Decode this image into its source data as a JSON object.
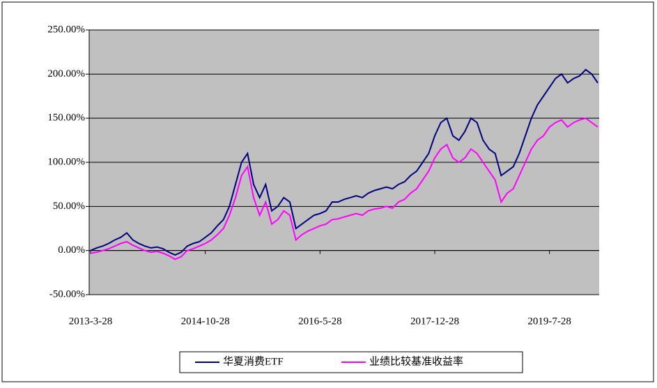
{
  "chart_data": {
    "type": "line",
    "categories": [
      "2013-3-28",
      null,
      null,
      null,
      null,
      null,
      null,
      null,
      null,
      null,
      null,
      null,
      null,
      null,
      null,
      null,
      null,
      null,
      null,
      "2014-10-28",
      null,
      null,
      null,
      null,
      null,
      null,
      null,
      null,
      null,
      null,
      null,
      null,
      null,
      null,
      null,
      null,
      null,
      null,
      "2016-5-28",
      null,
      null,
      null,
      null,
      null,
      null,
      null,
      null,
      null,
      null,
      null,
      null,
      null,
      null,
      null,
      null,
      null,
      null,
      "2017-12-28",
      null,
      null,
      null,
      null,
      null,
      null,
      null,
      null,
      null,
      null,
      null,
      null,
      null,
      null,
      null,
      null,
      null,
      null,
      "2019-7-28",
      null,
      null,
      null,
      null,
      null,
      null,
      null,
      null
    ],
    "series": [
      {
        "name": "华夏消费ETF",
        "color": "#000080",
        "values": [
          0,
          3,
          5,
          8,
          12,
          15,
          20,
          12,
          8,
          5,
          3,
          4,
          2,
          -2,
          -5,
          -2,
          5,
          8,
          10,
          15,
          20,
          28,
          35,
          50,
          75,
          100,
          110,
          75,
          60,
          75,
          45,
          50,
          60,
          55,
          25,
          30,
          35,
          40,
          42,
          45,
          55,
          55,
          58,
          60,
          62,
          60,
          65,
          68,
          70,
          72,
          70,
          75,
          78,
          85,
          90,
          100,
          110,
          130,
          145,
          150,
          130,
          125,
          135,
          150,
          145,
          125,
          115,
          110,
          85,
          90,
          95,
          110,
          130,
          150,
          165,
          175,
          185,
          195,
          200,
          190,
          195,
          198,
          205,
          200,
          190
        ]
      },
      {
        "name": "业绩比较基准收益率",
        "color": "#ff00ff",
        "values": [
          -3,
          -2,
          0,
          2,
          5,
          8,
          10,
          6,
          3,
          0,
          -2,
          -1,
          -3,
          -6,
          -10,
          -7,
          0,
          2,
          5,
          8,
          12,
          18,
          25,
          40,
          60,
          85,
          95,
          60,
          40,
          55,
          30,
          35,
          45,
          40,
          12,
          18,
          22,
          25,
          28,
          30,
          35,
          36,
          38,
          40,
          42,
          40,
          45,
          47,
          48,
          50,
          48,
          55,
          58,
          65,
          70,
          80,
          90,
          105,
          115,
          120,
          105,
          100,
          105,
          115,
          110,
          100,
          90,
          80,
          55,
          65,
          70,
          85,
          100,
          115,
          125,
          130,
          140,
          145,
          148,
          140,
          145,
          148,
          150,
          145,
          140
        ]
      }
    ],
    "ylim": [
      -50,
      250
    ],
    "yticks": [
      {
        "value": -50,
        "label": "-50.00%"
      },
      {
        "value": 0,
        "label": "0.00%"
      },
      {
        "value": 50,
        "label": "50.00%"
      },
      {
        "value": 100,
        "label": "100.00%"
      },
      {
        "value": 150,
        "label": "150.00%"
      },
      {
        "value": 200,
        "label": "200.00%"
      },
      {
        "value": 250,
        "label": "250.00%"
      }
    ],
    "grid": true,
    "legend": "bottom"
  }
}
